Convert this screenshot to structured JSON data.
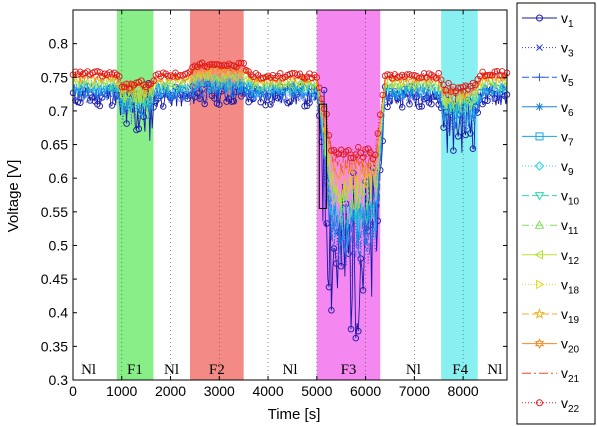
{
  "chart_data": {
    "type": "line",
    "title": "",
    "xlabel": "Time [s]",
    "ylabel": "Voltage [V]",
    "xlim": [
      0,
      8900
    ],
    "ylim": [
      0.3,
      0.85
    ],
    "xticks": [
      0,
      1000,
      2000,
      3000,
      4000,
      5000,
      6000,
      7000,
      8000
    ],
    "yticks": [
      0.3,
      0.35,
      0.4,
      0.45,
      0.5,
      0.55,
      0.6,
      0.65,
      0.7,
      0.75,
      0.8
    ],
    "grid": "vertical-dotted",
    "legend_position": "outside-right",
    "regions": [
      {
        "label": "Nl",
        "start": 0,
        "end": 900,
        "color": "",
        "label_x": 320
      },
      {
        "label": "F1",
        "start": 900,
        "end": 1650,
        "color": "#88ee88",
        "label_x": 1270
      },
      {
        "label": "Nl",
        "start": 1650,
        "end": 2400,
        "color": "",
        "label_x": 2020
      },
      {
        "label": "F2",
        "start": 2400,
        "end": 3500,
        "color": "#f48a86",
        "label_x": 2950
      },
      {
        "label": "Nl",
        "start": 3500,
        "end": 5000,
        "color": "",
        "label_x": 4450
      },
      {
        "label": "F3",
        "start": 5000,
        "end": 6300,
        "color": "#f488f0",
        "label_x": 5650
      },
      {
        "label": "Nl",
        "start": 6300,
        "end": 7550,
        "color": "",
        "label_x": 6980
      },
      {
        "label": "F4",
        "start": 7550,
        "end": 8300,
        "color": "#88f0f0",
        "label_x": 7940
      },
      {
        "label": "Nl",
        "start": 8300,
        "end": 8900,
        "color": "",
        "label_x": 8650
      }
    ],
    "annotation_box": {
      "x0": 5050,
      "x1": 5200,
      "y0": 0.555,
      "y1": 0.71
    },
    "levels": {
      "time": [
        0,
        900,
        1000,
        1600,
        1700,
        2400,
        2500,
        3500,
        3700,
        5000,
        5100,
        5300,
        5500,
        6200,
        6400,
        7000,
        7500,
        7600,
        8200,
        8400,
        8900
      ],
      "v1": [
        0.722,
        0.722,
        0.7,
        0.7,
        0.72,
        0.72,
        0.725,
        0.725,
        0.722,
        0.722,
        0.66,
        0.5,
        0.48,
        0.5,
        0.72,
        0.722,
        0.722,
        0.685,
        0.685,
        0.722,
        0.722
      ],
      "v22": [
        0.755,
        0.755,
        0.74,
        0.74,
        0.755,
        0.755,
        0.768,
        0.768,
        0.752,
        0.752,
        0.72,
        0.65,
        0.635,
        0.64,
        0.752,
        0.752,
        0.752,
        0.735,
        0.735,
        0.755,
        0.755
      ]
    },
    "series": [
      {
        "name": "v",
        "sub": "1",
        "color": "#1a1aa8",
        "dash": "",
        "marker": "circle"
      },
      {
        "name": "v",
        "sub": "3",
        "color": "#2a3ae0",
        "dash": "1,2",
        "marker": "x"
      },
      {
        "name": "v",
        "sub": "5",
        "color": "#2a5ae0",
        "dash": "7,3",
        "marker": "plus"
      },
      {
        "name": "v",
        "sub": "6",
        "color": "#1e7ee8",
        "dash": "",
        "marker": "star"
      },
      {
        "name": "v",
        "sub": "7",
        "color": "#10a4e8",
        "dash": "",
        "marker": "square"
      },
      {
        "name": "v",
        "sub": "9",
        "color": "#20d8e8",
        "dash": "1,2",
        "marker": "diamond"
      },
      {
        "name": "v",
        "sub": "10",
        "color": "#30d8b0",
        "dash": "7,3",
        "marker": "triangle-down"
      },
      {
        "name": "v",
        "sub": "11",
        "color": "#80e060",
        "dash": "7,3,1,3",
        "marker": "triangle-up"
      },
      {
        "name": "v",
        "sub": "12",
        "color": "#b8e030",
        "dash": "",
        "marker": "triangle-left"
      },
      {
        "name": "v",
        "sub": "18",
        "color": "#ecd820",
        "dash": "1,2",
        "marker": "triangle-right"
      },
      {
        "name": "v",
        "sub": "19",
        "color": "#f4b020",
        "dash": "7,3",
        "marker": "pentagram"
      },
      {
        "name": "v",
        "sub": "20",
        "color": "#f48820",
        "dash": "",
        "marker": "hexagram"
      },
      {
        "name": "v",
        "sub": "21",
        "color": "#f04820",
        "dash": "9,3,2,3",
        "marker": "none"
      },
      {
        "name": "v",
        "sub": "22",
        "color": "#e01818",
        "dash": "1,2",
        "marker": "circle"
      }
    ]
  }
}
